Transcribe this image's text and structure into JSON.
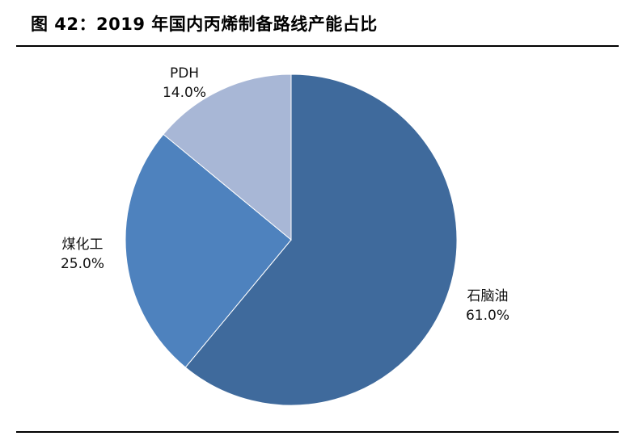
{
  "figure": {
    "title": "图 42：2019 年国内丙烯制备路线产能占比"
  },
  "chart_data": {
    "type": "pie",
    "title": "",
    "start": "12 o'clock",
    "direction": "clockwise",
    "slices": [
      {
        "label": "石脑油",
        "value": 61.0,
        "value_label": "61.0%",
        "color": "#3f6a9c"
      },
      {
        "label": "煤化工",
        "value": 25.0,
        "value_label": "25.0%",
        "color": "#4e82be"
      },
      {
        "label": "PDH",
        "value": 14.0,
        "value_label": "14.0%",
        "color": "#a8b7d6"
      }
    ]
  }
}
